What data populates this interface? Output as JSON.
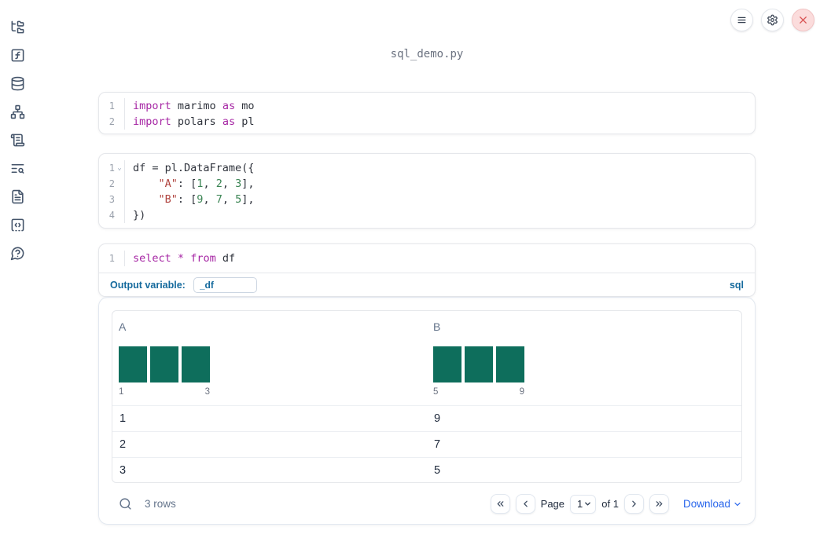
{
  "app": {
    "title": "sql_demo.py"
  },
  "colors": {
    "accent_blue": "#156a9d",
    "link_blue": "#2563eb",
    "keyword": "#a626a4",
    "string": "#b0443f",
    "number": "#3a8453",
    "code_text": "#30343d",
    "bar_teal": "#0e6e5c",
    "icon_slate": "#44546a",
    "close_red": "#d95454",
    "close_bg": "#fbdcdc"
  },
  "sidebar": {
    "items": [
      {
        "icon": "file-explorer-icon"
      },
      {
        "icon": "variables-icon"
      },
      {
        "icon": "datasources-icon"
      },
      {
        "icon": "dependency-graph-icon"
      },
      {
        "icon": "scratchpad-icon"
      },
      {
        "icon": "logs-search-icon"
      },
      {
        "icon": "documentation-icon"
      },
      {
        "icon": "snippets-icon"
      },
      {
        "icon": "help-chat-icon"
      }
    ]
  },
  "topbar": {
    "buttons": [
      {
        "icon": "menu-icon"
      },
      {
        "icon": "settings-gear-icon"
      },
      {
        "icon": "shutdown-close-icon"
      }
    ]
  },
  "cells": [
    {
      "lines": [
        {
          "num": "1",
          "fold": false,
          "tokens": [
            {
              "c": "kw",
              "t": "import"
            },
            {
              "c": "pl",
              "t": " marimo "
            },
            {
              "c": "kw",
              "t": "as"
            },
            {
              "c": "pl",
              "t": " mo"
            }
          ]
        },
        {
          "num": "2",
          "fold": false,
          "tokens": [
            {
              "c": "kw",
              "t": "import"
            },
            {
              "c": "pl",
              "t": " polars "
            },
            {
              "c": "kw",
              "t": "as"
            },
            {
              "c": "pl",
              "t": " pl"
            }
          ]
        }
      ]
    },
    {
      "lines": [
        {
          "num": "1",
          "fold": true,
          "tokens": [
            {
              "c": "pl",
              "t": "df = pl.DataFrame({"
            }
          ]
        },
        {
          "num": "2",
          "fold": false,
          "tokens": [
            {
              "c": "pl",
              "t": "    "
            },
            {
              "c": "str",
              "t": "\"A\""
            },
            {
              "c": "pl",
              "t": ": ["
            },
            {
              "c": "num",
              "t": "1"
            },
            {
              "c": "pl",
              "t": ", "
            },
            {
              "c": "num",
              "t": "2"
            },
            {
              "c": "pl",
              "t": ", "
            },
            {
              "c": "num",
              "t": "3"
            },
            {
              "c": "pl",
              "t": "],"
            }
          ]
        },
        {
          "num": "3",
          "fold": false,
          "tokens": [
            {
              "c": "pl",
              "t": "    "
            },
            {
              "c": "str",
              "t": "\"B\""
            },
            {
              "c": "pl",
              "t": ": ["
            },
            {
              "c": "num",
              "t": "9"
            },
            {
              "c": "pl",
              "t": ", "
            },
            {
              "c": "num",
              "t": "7"
            },
            {
              "c": "pl",
              "t": ", "
            },
            {
              "c": "num",
              "t": "5"
            },
            {
              "c": "pl",
              "t": "],"
            }
          ]
        },
        {
          "num": "4",
          "fold": false,
          "tokens": [
            {
              "c": "pl",
              "t": "})"
            }
          ]
        }
      ]
    },
    {
      "lines": [
        {
          "num": "1",
          "fold": false,
          "tokens": [
            {
              "c": "kw",
              "t": "select"
            },
            {
              "c": "pl",
              "t": " "
            },
            {
              "c": "kw",
              "t": "*"
            },
            {
              "c": "pl",
              "t": " "
            },
            {
              "c": "kw",
              "t": "from"
            },
            {
              "c": "pl",
              "t": " df"
            }
          ]
        }
      ]
    }
  ],
  "sql_cell": {
    "output_variable_label": "Output variable:",
    "output_variable_value": "_df",
    "language_badge": "sql"
  },
  "table": {
    "columns": [
      {
        "name": "A",
        "hist": {
          "bars": [
            1,
            1,
            1
          ],
          "min_label": "1",
          "max_label": "3"
        }
      },
      {
        "name": "B",
        "hist": {
          "bars": [
            1,
            1,
            1
          ],
          "min_label": "5",
          "max_label": "9"
        }
      }
    ],
    "rows": [
      [
        "1",
        "9"
      ],
      [
        "2",
        "7"
      ],
      [
        "3",
        "5"
      ]
    ],
    "footer": {
      "row_count": "3 rows",
      "page_label": "Page",
      "page_value": "1",
      "of_label": "of 1",
      "download_label": "Download"
    }
  }
}
